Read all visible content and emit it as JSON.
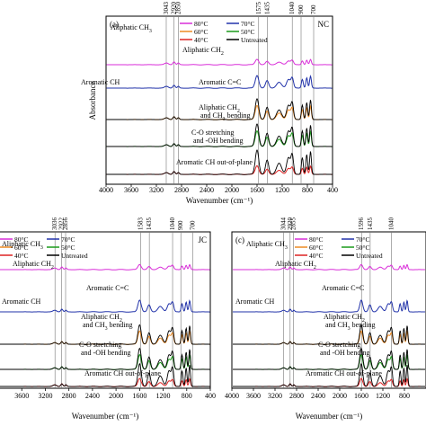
{
  "figure": {
    "common_xlabel": "Wavenumber (cm⁻¹)",
    "common_ylabel": "Absorbance"
  },
  "legend_entries": [
    {
      "label": "80°C",
      "color": "#d92ed9"
    },
    {
      "label": "70°C",
      "color": "#2233aa"
    },
    {
      "label": "60°C",
      "color": "#ee8a22"
    },
    {
      "label": "50°C",
      "color": "#1a9a1a"
    },
    {
      "label": "40°C",
      "color": "#dd2222"
    },
    {
      "label": "Untreated",
      "color": "#000000"
    }
  ],
  "chart_data": [
    {
      "type": "line",
      "panel_letter": "(a)",
      "sample_label": "NC",
      "xlabel": "Wavenumber (cm⁻¹)",
      "ylabel": "Absorbance",
      "xlim": [
        4000,
        400
      ],
      "x_ticks": [
        4000,
        3600,
        3200,
        2800,
        2400,
        2000,
        1600,
        1200,
        800,
        400
      ],
      "peak_labels": [
        "3043",
        "2920",
        "2850",
        "1575",
        "1435",
        "1040",
        "900",
        "700"
      ],
      "peak_positions": [
        3043,
        2920,
        2850,
        1575,
        1435,
        1040,
        900,
        700
      ],
      "annotations": [
        "Aliphatic CH₃",
        "Aliphatic CH₂",
        "Aromatic CH",
        "Aromatic C=C",
        "Aliphatic CH₂ and CH₃ bending",
        "C-O stretching and -OH bending",
        "Aromatic CH out-of-plane"
      ],
      "series": [
        {
          "name": "80°C",
          "color": "#d92ed9"
        },
        {
          "name": "70°C",
          "color": "#2233aa"
        },
        {
          "name": "60°C",
          "color": "#ee8a22"
        },
        {
          "name": "50°C",
          "color": "#1a9a1a"
        },
        {
          "name": "40°C",
          "color": "#dd2222"
        },
        {
          "name": "Untreated",
          "color": "#000000"
        }
      ]
    },
    {
      "type": "line",
      "panel_letter": "",
      "sample_label": "JC",
      "xlabel": "Wavenumber (cm⁻¹)",
      "xlim": [
        4000,
        400
      ],
      "x_ticks": [
        3600,
        3200,
        2800,
        2400,
        2000,
        1600,
        1200,
        800,
        400
      ],
      "peak_labels": [
        "3036",
        "2922",
        "2856",
        "1583",
        "1435",
        "1040",
        "900",
        "700"
      ],
      "peak_positions": [
        3036,
        2922,
        2856,
        1583,
        1435,
        1040,
        900,
        700
      ],
      "annotations": [
        "Aliphatic CH₃",
        "Aliphatic CH₂",
        "Aromatic CH",
        "Aromatic C=C",
        "Aliphatic CH₂ and CH₃ bending",
        "C-O stretching and -OH bending",
        "Aromatic CH out-of-plane"
      ]
    },
    {
      "type": "line",
      "panel_letter": "(c)",
      "sample_label": "",
      "xlabel": "Wavenumber (cm⁻¹)",
      "xlim": [
        4000,
        400
      ],
      "x_ticks": [
        4000,
        3600,
        3200,
        2800,
        2400,
        2000,
        1600,
        1200,
        800
      ],
      "peak_labels": [
        "3044",
        "2920",
        "2855",
        "1596",
        "1435",
        "1040"
      ],
      "peak_positions": [
        3044,
        2920,
        2855,
        1596,
        1435,
        1040
      ],
      "annotations": [
        "Aliphatic CH₃",
        "Aliphatic CH₂",
        "Aromatic CH",
        "Aromatic C=C",
        "Aliphatic CH₂ and CH₃ bending",
        "C-O stretching and -OH bending",
        "Aromatic CH out-of-plane"
      ]
    }
  ]
}
